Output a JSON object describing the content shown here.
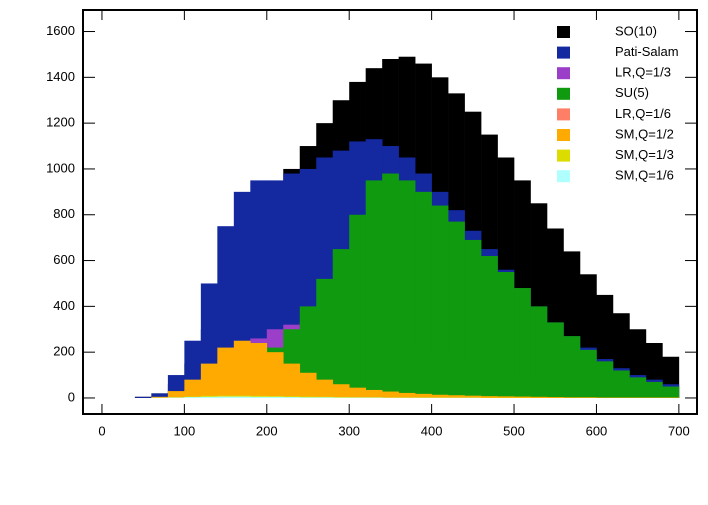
{
  "chart_data": {
    "type": "histogram",
    "bins": [
      0,
      20,
      40,
      60,
      80,
      100,
      120,
      140,
      160,
      180,
      200,
      220,
      240,
      260,
      280,
      300,
      320,
      340,
      360,
      380,
      400,
      420,
      440,
      460,
      480,
      500,
      520,
      540,
      560,
      580,
      600,
      620,
      640,
      660,
      680,
      700
    ],
    "series": [
      {
        "name": "SO(10)",
        "color": "#000000",
        "values": [
          0,
          0,
          5,
          20,
          60,
          150,
          300,
          450,
          600,
          750,
          880,
          1000,
          1100,
          1200,
          1300,
          1380,
          1440,
          1480,
          1490,
          1460,
          1400,
          1330,
          1250,
          1150,
          1050,
          950,
          850,
          740,
          640,
          540,
          450,
          370,
          300,
          240,
          180
        ]
      },
      {
        "name": "Pati-Salam",
        "color": "#1428a0",
        "values": [
          0,
          0,
          5,
          20,
          100,
          250,
          500,
          750,
          900,
          950,
          950,
          980,
          1000,
          1050,
          1080,
          1120,
          1130,
          1100,
          1050,
          980,
          900,
          820,
          730,
          650,
          560,
          480,
          400,
          330,
          270,
          220,
          170,
          130,
          100,
          80,
          60
        ]
      },
      {
        "name": "LR,Q=1/3",
        "color": "#9b3fc8",
        "values": [
          0,
          0,
          0,
          2,
          10,
          40,
          90,
          160,
          220,
          260,
          300,
          320,
          330,
          320,
          300,
          280,
          260,
          240,
          220,
          200,
          180,
          160,
          140,
          120,
          100,
          85,
          70,
          60,
          50,
          40,
          32,
          25,
          20,
          16,
          12
        ]
      },
      {
        "name": "SU(5)",
        "color": "#109a10",
        "values": [
          0,
          0,
          0,
          0,
          5,
          20,
          60,
          100,
          130,
          160,
          220,
          300,
          400,
          520,
          650,
          800,
          950,
          980,
          950,
          900,
          840,
          770,
          690,
          620,
          550,
          480,
          400,
          330,
          270,
          210,
          160,
          120,
          90,
          70,
          50
        ]
      },
      {
        "name": "LR,Q=1/6",
        "color": "#ff7f66",
        "values": [
          0,
          0,
          0,
          0,
          2,
          5,
          8,
          10,
          10,
          9,
          8,
          7,
          6,
          5,
          4,
          4,
          3,
          3,
          2,
          2,
          2,
          2,
          1,
          1,
          1,
          1,
          1,
          1,
          0,
          0,
          0,
          0,
          0,
          0,
          0
        ]
      },
      {
        "name": "SM,Q=1/2",
        "color": "#ffaa00",
        "values": [
          0,
          0,
          0,
          5,
          30,
          80,
          150,
          220,
          250,
          240,
          200,
          150,
          110,
          80,
          60,
          45,
          35,
          28,
          22,
          18,
          14,
          12,
          10,
          8,
          7,
          6,
          5,
          4,
          3,
          3,
          2,
          2,
          2,
          2,
          2
        ]
      },
      {
        "name": "SM,Q=1/3",
        "color": "#dcdc00",
        "values": [
          0,
          0,
          0,
          1,
          3,
          6,
          9,
          10,
          10,
          9,
          8,
          7,
          6,
          5,
          4,
          3,
          3,
          2,
          2,
          2,
          1,
          1,
          1,
          1,
          1,
          1,
          0,
          0,
          0,
          0,
          0,
          0,
          0,
          0,
          0
        ]
      },
      {
        "name": "SM,Q=1/6",
        "color": "#b0ffff",
        "values": [
          0,
          0,
          0,
          1,
          2,
          4,
          5,
          6,
          6,
          5,
          5,
          4,
          3,
          3,
          2,
          2,
          2,
          1,
          1,
          1,
          1,
          1,
          1,
          0,
          0,
          0,
          0,
          0,
          0,
          0,
          0,
          0,
          0,
          0,
          0
        ]
      }
    ],
    "xlim": [
      -23,
      722
    ],
    "ylim": [
      -70,
      1694
    ],
    "xticks": [
      0,
      100,
      200,
      300,
      400,
      500,
      600,
      700
    ],
    "yticks": [
      0,
      200,
      400,
      600,
      800,
      1000,
      1200,
      1400,
      1600
    ]
  }
}
